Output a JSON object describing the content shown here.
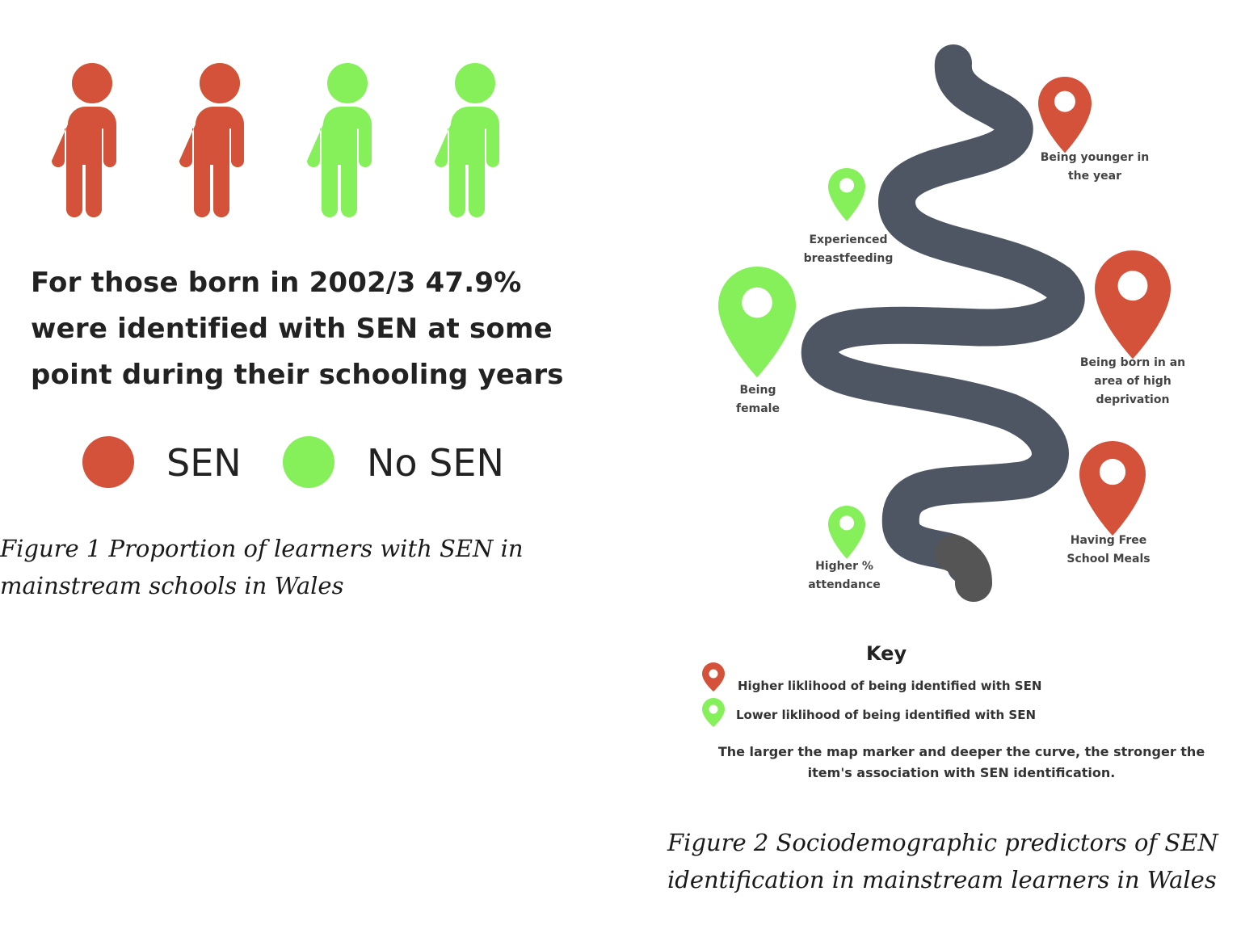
{
  "colors": {
    "sen": "#d4513a",
    "no_sen": "#86f05a",
    "road": "#4f5663",
    "road_end": "#555555"
  },
  "figure1": {
    "sen_percent": 47.9,
    "people_count": 4,
    "statement_lines": [
      "For those born in 2002/3 47.9%",
      "were identified with SEN at some",
      "point during their schooling years"
    ],
    "legend": [
      {
        "label": "SEN",
        "color": "#d4513a"
      },
      {
        "label": "No SEN",
        "color": "#86f05a"
      }
    ],
    "caption_lines": [
      "Figure 1 Proportion of learners with SEN in",
      "mainstream schools in Wales"
    ]
  },
  "figure2": {
    "markers": [
      {
        "label_lines": [
          "Being younger in",
          "the year"
        ],
        "type": "higher",
        "icon": "map-pin-icon"
      },
      {
        "label_lines": [
          "Experienced",
          "breastfeeding"
        ],
        "type": "lower",
        "icon": "map-pin-icon"
      },
      {
        "label_lines": [
          "Being",
          "female"
        ],
        "type": "lower",
        "icon": "map-pin-icon"
      },
      {
        "label_lines": [
          "Being born in an",
          "area of high",
          "deprivation"
        ],
        "type": "higher",
        "icon": "map-pin-icon"
      },
      {
        "label_lines": [
          "Having Free",
          "School Meals"
        ],
        "type": "higher",
        "icon": "map-pin-icon"
      },
      {
        "label_lines": [
          "Higher %",
          "attendance"
        ],
        "type": "lower",
        "icon": "map-pin-icon"
      }
    ],
    "key": {
      "title": "Key",
      "higher": "Higher liklihood of being identified with SEN",
      "lower": "Lower liklihood of being identified with SEN",
      "note_lines": [
        "The larger the map marker and deeper the curve, the stronger the",
        "item's association with SEN identification."
      ]
    },
    "caption_lines": [
      "Figure 2 Sociodemographic  predictors of SEN",
      "identification in mainstream learners in Wales"
    ]
  }
}
